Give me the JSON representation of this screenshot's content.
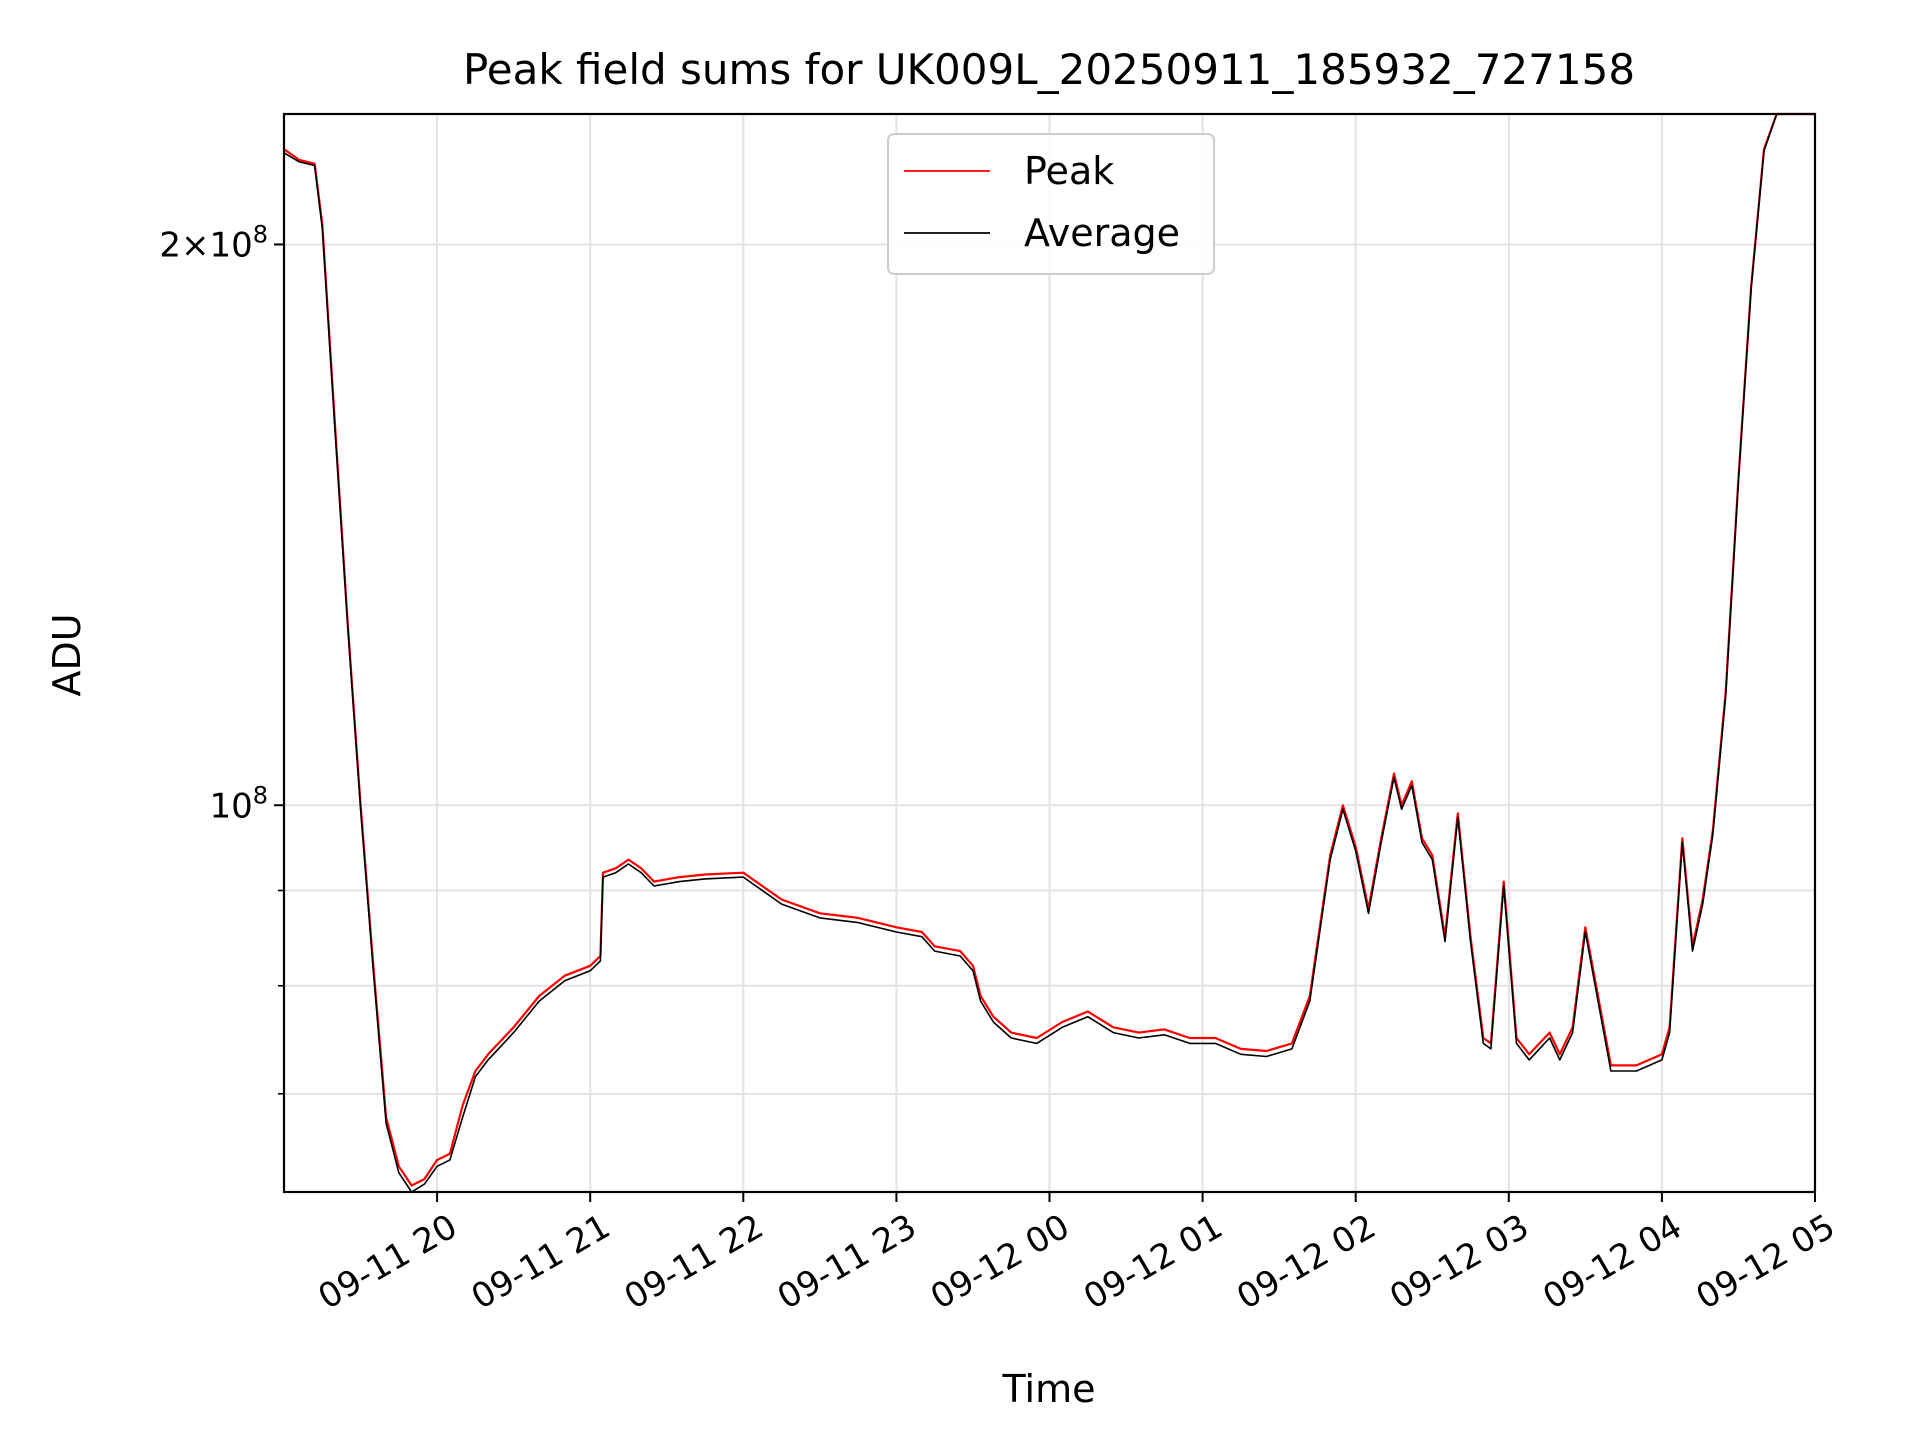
{
  "chart_data": {
    "type": "line",
    "title": "Peak field sums for UK009L_20250911_185932_727158",
    "xlabel": "Time",
    "ylabel": "ADU",
    "yscale": "log",
    "ylim": [
      62000000,
      235000000
    ],
    "xlim": [
      "2025-09-11 19:00",
      "2025-09-12 05:00"
    ],
    "x_ticks": [
      "09-11 20",
      "09-11 21",
      "09-11 22",
      "09-11 23",
      "09-12 00",
      "09-12 01",
      "09-12 02",
      "09-12 03",
      "09-12 04",
      "09-12 05"
    ],
    "y_ticks_major": [
      {
        "label": "2×10^8",
        "value": 200000000
      },
      {
        "label": "10^8",
        "value": 100000000
      }
    ],
    "y_ticks_minor": [
      70000000,
      80000000,
      90000000
    ],
    "grid": true,
    "legend_position": "upper center",
    "colors": {
      "peak": "#ff0000",
      "average": "#000000"
    },
    "series": [
      {
        "name": "Peak",
        "x": [
          "2025-09-11 19:00",
          "2025-09-11 19:06",
          "2025-09-11 19:12",
          "2025-09-11 19:15",
          "2025-09-11 19:20",
          "2025-09-11 19:25",
          "2025-09-11 19:30",
          "2025-09-11 19:35",
          "2025-09-11 19:40",
          "2025-09-11 19:45",
          "2025-09-11 19:50",
          "2025-09-11 19:55",
          "2025-09-11 20:00",
          "2025-09-11 20:05",
          "2025-09-11 20:10",
          "2025-09-11 20:15",
          "2025-09-11 20:20",
          "2025-09-11 20:30",
          "2025-09-11 20:40",
          "2025-09-11 20:50",
          "2025-09-11 21:00",
          "2025-09-11 21:04",
          "2025-09-11 21:05",
          "2025-09-11 21:10",
          "2025-09-11 21:15",
          "2025-09-11 21:20",
          "2025-09-11 21:25",
          "2025-09-11 21:35",
          "2025-09-11 21:45",
          "2025-09-11 22:00",
          "2025-09-11 22:15",
          "2025-09-11 22:30",
          "2025-09-11 22:45",
          "2025-09-11 23:00",
          "2025-09-11 23:10",
          "2025-09-11 23:15",
          "2025-09-11 23:25",
          "2025-09-11 23:30",
          "2025-09-11 23:33",
          "2025-09-11 23:38",
          "2025-09-11 23:45",
          "2025-09-11 23:55",
          "2025-09-12 00:05",
          "2025-09-12 00:15",
          "2025-09-12 00:25",
          "2025-09-12 00:35",
          "2025-09-12 00:45",
          "2025-09-12 00:55",
          "2025-09-12 01:05",
          "2025-09-12 01:15",
          "2025-09-12 01:25",
          "2025-09-12 01:35",
          "2025-09-12 01:42",
          "2025-09-12 01:50",
          "2025-09-12 01:55",
          "2025-09-12 02:00",
          "2025-09-12 02:05",
          "2025-09-12 02:10",
          "2025-09-12 02:15",
          "2025-09-12 02:18",
          "2025-09-12 02:22",
          "2025-09-12 02:26",
          "2025-09-12 02:30",
          "2025-09-12 02:35",
          "2025-09-12 02:40",
          "2025-09-12 02:45",
          "2025-09-12 02:50",
          "2025-09-12 02:53",
          "2025-09-12 02:58",
          "2025-09-12 03:03",
          "2025-09-12 03:08",
          "2025-09-12 03:12",
          "2025-09-12 03:16",
          "2025-09-12 03:20",
          "2025-09-12 03:25",
          "2025-09-12 03:30",
          "2025-09-12 03:40",
          "2025-09-12 03:50",
          "2025-09-12 04:00",
          "2025-09-12 04:03",
          "2025-09-12 04:08",
          "2025-09-12 04:12",
          "2025-09-12 04:16",
          "2025-09-12 04:20",
          "2025-09-12 04:25",
          "2025-09-12 04:30",
          "2025-09-12 04:35",
          "2025-09-12 04:40",
          "2025-09-12 04:45",
          "2025-09-12 04:50",
          "2025-09-12 04:55",
          "2025-09-12 05:00"
        ],
        "y": [
          225000000,
          222000000,
          221000000,
          205000000,
          160000000,
          125000000,
          100000000,
          82000000,
          68000000,
          64000000,
          62500000,
          63000000,
          64500000,
          65000000,
          69000000,
          72000000,
          73500000,
          76000000,
          79000000,
          81000000,
          82000000,
          83000000,
          92000000,
          92500000,
          93500000,
          92500000,
          91000000,
          91500000,
          91800000,
          92000000,
          89000000,
          87500000,
          87000000,
          86000000,
          85500000,
          84000000,
          83500000,
          82000000,
          79000000,
          77000000,
          75500000,
          75000000,
          76500000,
          77500000,
          76000000,
          75500000,
          75800000,
          75000000,
          75000000,
          74000000,
          73800000,
          74500000,
          79000000,
          94000000,
          100000000,
          95000000,
          88000000,
          96000000,
          104000000,
          100000000,
          103000000,
          96000000,
          94000000,
          85000000,
          99000000,
          85000000,
          75000000,
          74500000,
          91000000,
          75000000,
          73500000,
          74500000,
          75500000,
          73500000,
          76000000,
          86000000,
          72500000,
          72500000,
          73500000,
          76000000,
          96000000,
          84000000,
          89000000,
          97000000,
          115000000,
          150000000,
          190000000,
          225000000,
          235000000,
          235000000,
          235000000,
          235000000
        ]
      },
      {
        "name": "Average",
        "x": [
          "2025-09-11 19:00",
          "2025-09-11 19:06",
          "2025-09-11 19:12",
          "2025-09-11 19:15",
          "2025-09-11 19:20",
          "2025-09-11 19:25",
          "2025-09-11 19:30",
          "2025-09-11 19:35",
          "2025-09-11 19:40",
          "2025-09-11 19:45",
          "2025-09-11 19:50",
          "2025-09-11 19:55",
          "2025-09-11 20:00",
          "2025-09-11 20:05",
          "2025-09-11 20:10",
          "2025-09-11 20:15",
          "2025-09-11 20:20",
          "2025-09-11 20:30",
          "2025-09-11 20:40",
          "2025-09-11 20:50",
          "2025-09-11 21:00",
          "2025-09-11 21:04",
          "2025-09-11 21:05",
          "2025-09-11 21:10",
          "2025-09-11 21:15",
          "2025-09-11 21:20",
          "2025-09-11 21:25",
          "2025-09-11 21:35",
          "2025-09-11 21:45",
          "2025-09-11 22:00",
          "2025-09-11 22:15",
          "2025-09-11 22:30",
          "2025-09-11 22:45",
          "2025-09-11 23:00",
          "2025-09-11 23:10",
          "2025-09-11 23:15",
          "2025-09-11 23:25",
          "2025-09-11 23:30",
          "2025-09-11 23:33",
          "2025-09-11 23:38",
          "2025-09-11 23:45",
          "2025-09-11 23:55",
          "2025-09-12 00:05",
          "2025-09-12 00:15",
          "2025-09-12 00:25",
          "2025-09-12 00:35",
          "2025-09-12 00:45",
          "2025-09-12 00:55",
          "2025-09-12 01:05",
          "2025-09-12 01:15",
          "2025-09-12 01:25",
          "2025-09-12 01:35",
          "2025-09-12 01:42",
          "2025-09-12 01:50",
          "2025-09-12 01:55",
          "2025-09-12 02:00",
          "2025-09-12 02:05",
          "2025-09-12 02:10",
          "2025-09-12 02:15",
          "2025-09-12 02:18",
          "2025-09-12 02:22",
          "2025-09-12 02:26",
          "2025-09-12 02:30",
          "2025-09-12 02:35",
          "2025-09-12 02:40",
          "2025-09-12 02:45",
          "2025-09-12 02:50",
          "2025-09-12 02:53",
          "2025-09-12 02:58",
          "2025-09-12 03:03",
          "2025-09-12 03:08",
          "2025-09-12 03:12",
          "2025-09-12 03:16",
          "2025-09-12 03:20",
          "2025-09-12 03:25",
          "2025-09-12 03:30",
          "2025-09-12 03:40",
          "2025-09-12 03:50",
          "2025-09-12 04:00",
          "2025-09-12 04:03",
          "2025-09-12 04:08",
          "2025-09-12 04:12",
          "2025-09-12 04:16",
          "2025-09-12 04:20",
          "2025-09-12 04:25",
          "2025-09-12 04:30",
          "2025-09-12 04:35",
          "2025-09-12 04:40",
          "2025-09-12 04:45",
          "2025-09-12 04:50",
          "2025-09-12 04:55",
          "2025-09-12 05:00"
        ],
        "y": [
          224000000,
          221500000,
          220500000,
          204000000,
          159000000,
          124500000,
          99500000,
          81500000,
          67500000,
          63500000,
          62000000,
          62600000,
          64000000,
          64500000,
          68000000,
          71500000,
          73000000,
          75500000,
          78500000,
          80500000,
          81500000,
          82500000,
          91500000,
          92000000,
          93000000,
          92000000,
          90500000,
          91000000,
          91300000,
          91500000,
          88500000,
          87000000,
          86500000,
          85500000,
          85000000,
          83500000,
          83000000,
          81500000,
          78500000,
          76500000,
          75000000,
          74500000,
          76000000,
          77000000,
          75500000,
          75000000,
          75300000,
          74500000,
          74500000,
          73500000,
          73300000,
          74000000,
          78500000,
          93500000,
          99500000,
          94500000,
          87500000,
          95500000,
          103500000,
          99500000,
          102500000,
          95500000,
          93500000,
          84500000,
          98500000,
          84500000,
          74500000,
          74000000,
          90500000,
          74500000,
          73000000,
          74000000,
          75000000,
          73000000,
          75500000,
          85500000,
          72000000,
          72000000,
          73000000,
          75500000,
          95500000,
          83500000,
          88500000,
          96500000,
          114500000,
          149500000,
          189500000,
          224500000,
          235000000,
          235000000,
          235000000,
          235000000
        ]
      }
    ]
  }
}
